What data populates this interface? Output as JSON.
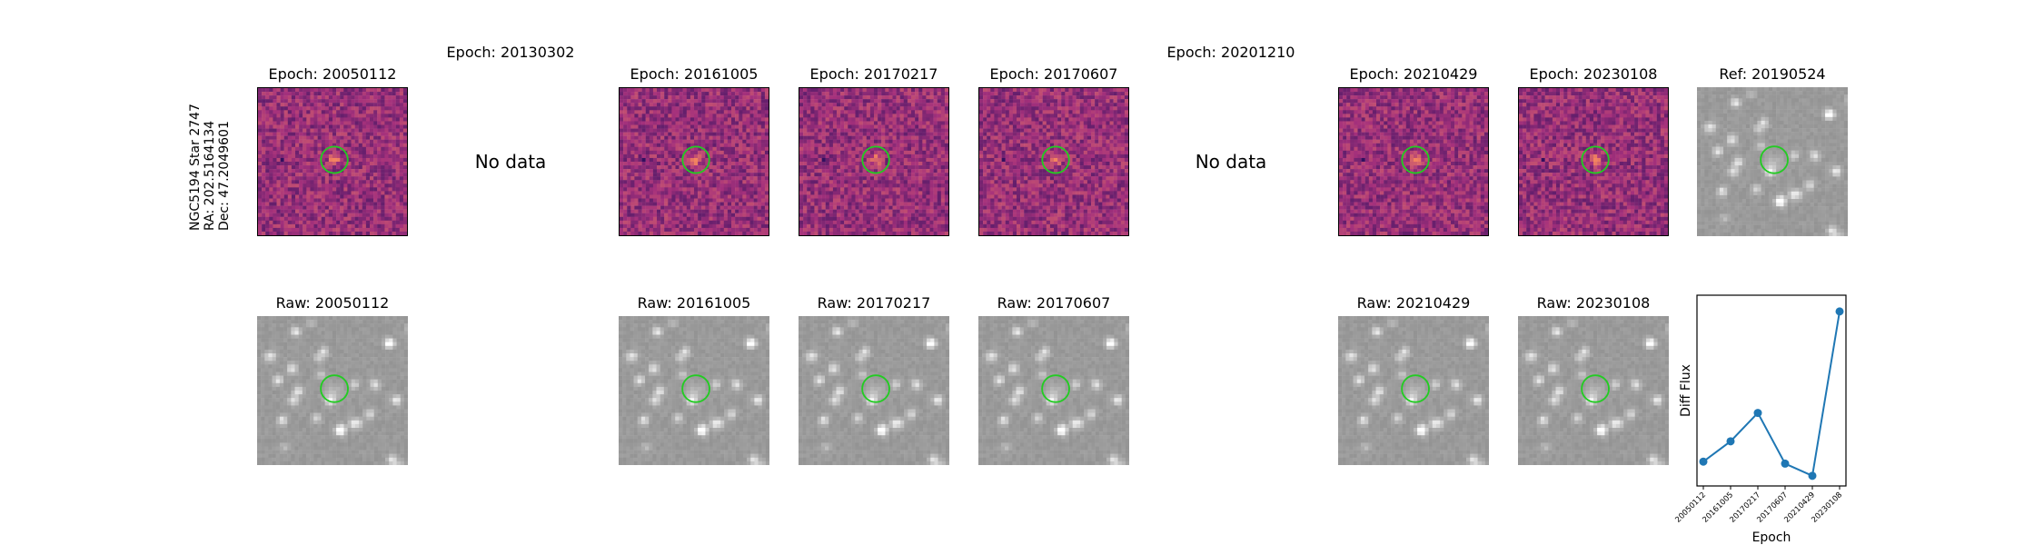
{
  "object": {
    "name_line": "NGC5194 Star 2747",
    "ra_line": "RA: 202.5164134",
    "dec_line": "Dec: 47.2049601"
  },
  "no_data_text": "No data",
  "top_row": [
    {
      "title": "Epoch: 20050112",
      "kind": "diff",
      "seed": 11
    },
    {
      "title": "Epoch: 20130302",
      "kind": "none"
    },
    {
      "title": "Epoch: 20161005",
      "kind": "diff",
      "seed": 23
    },
    {
      "title": "Epoch: 20170217",
      "kind": "diff",
      "seed": 37
    },
    {
      "title": "Epoch: 20170607",
      "kind": "diff",
      "seed": 41
    },
    {
      "title": "Epoch: 20201210",
      "kind": "none"
    },
    {
      "title": "Epoch: 20210429",
      "kind": "diff",
      "seed": 53
    },
    {
      "title": "Epoch: 20230108",
      "kind": "diff",
      "seed": 67
    },
    {
      "title": "Ref: 20190524",
      "kind": "raw",
      "seed": 5
    }
  ],
  "bottom_row": [
    {
      "title": "Raw: 20050112",
      "kind": "raw",
      "seed": 5
    },
    {
      "title": "",
      "kind": "empty"
    },
    {
      "title": "Raw: 20161005",
      "kind": "raw",
      "seed": 5
    },
    {
      "title": "Raw: 20170217",
      "kind": "raw",
      "seed": 5
    },
    {
      "title": "Raw: 20170607",
      "kind": "raw",
      "seed": 5
    },
    {
      "title": "",
      "kind": "empty"
    },
    {
      "title": "Raw: 20210429",
      "kind": "raw",
      "seed": 5
    },
    {
      "title": "Raw: 20230108",
      "kind": "raw",
      "seed": 5
    }
  ],
  "colors": {
    "marker_circle": "#22cc22",
    "line": "#1f77b4",
    "diff_low": "#2d0f5e",
    "diff_mid": "#a5317c",
    "diff_high": "#f4845f"
  },
  "chart_data": {
    "type": "line",
    "title": "",
    "xlabel": "Epoch",
    "ylabel": "Diff Flux",
    "categories": [
      "20050112",
      "20161005",
      "20170217",
      "20170607",
      "20210429",
      "20230108"
    ],
    "series": [
      {
        "values": [
          0.14,
          0.24,
          0.38,
          0.13,
          0.07,
          0.88
        ]
      }
    ],
    "ylim": [
      0.02,
      0.96
    ],
    "grid": false,
    "legend": "none"
  }
}
